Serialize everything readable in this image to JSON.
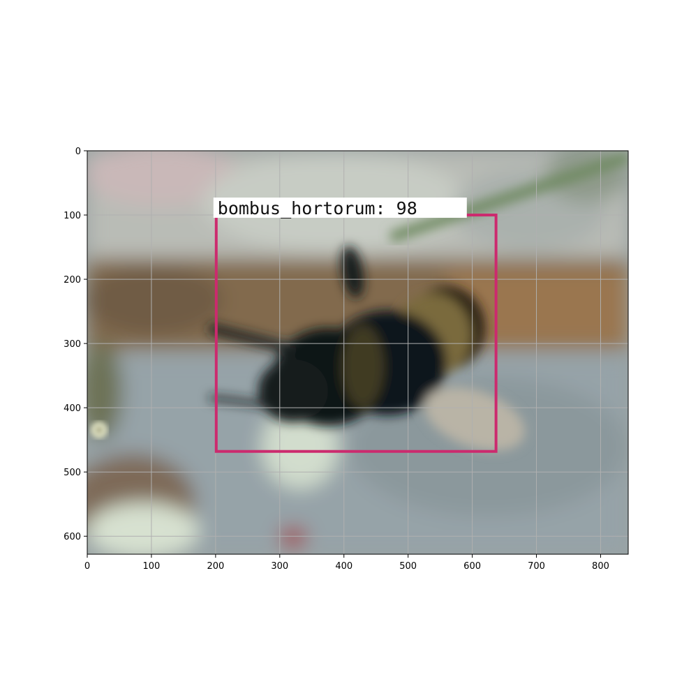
{
  "image_axes": {
    "x_ticks": [
      0,
      100,
      200,
      300,
      400,
      500,
      600,
      700,
      800
    ],
    "y_ticks": [
      0,
      100,
      200,
      300,
      400,
      500,
      600
    ],
    "x_range": [
      0,
      843
    ],
    "y_range": [
      0,
      628
    ],
    "y_inverted": true,
    "grid": true
  },
  "detection": {
    "label": "bombus_hortorum: 98",
    "class": "bombus_hortorum",
    "score": 98,
    "box": {
      "x_min": 201,
      "y_min": 100,
      "x_max": 637,
      "y_max": 468
    },
    "box_color": "#cc2a6e"
  },
  "colors": {
    "frame": "#000000",
    "grid": "#b0b0b0",
    "label_bg": "#ffffff"
  }
}
